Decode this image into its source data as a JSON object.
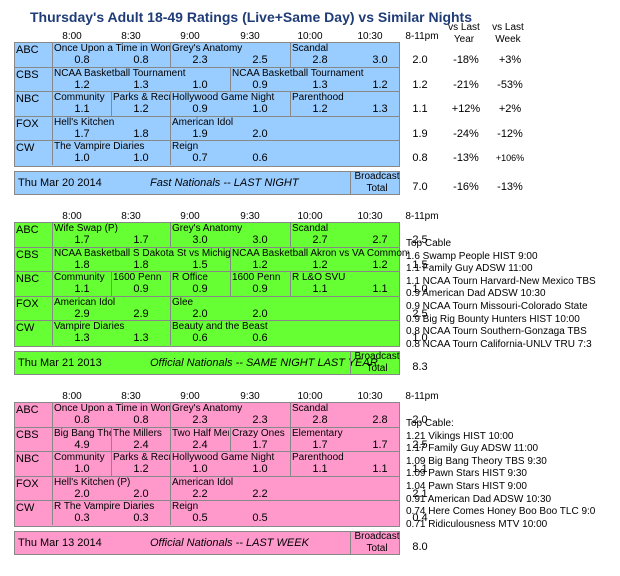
{
  "title": "Thursday's Adult 18-49 Ratings (Live+Same Day) vs Similar Nights",
  "side_headers": {
    "vs_last_year": "vs Last\nYear",
    "vs_last_week": "vs Last\nWeek"
  },
  "time_headers": [
    "8:00",
    "8:30",
    "9:00",
    "9:30",
    "10:00",
    "10:30",
    "8-11pm"
  ],
  "panels": [
    {
      "color": "#99ccff",
      "rows": [
        {
          "net": "ABC",
          "shows": [
            {
              "t": "Once Upon a Time in Wonde",
              "c": 0
            },
            {
              "t": "Grey's Anatomy",
              "c": 2
            },
            {
              "t": "Scandal",
              "c": 4
            }
          ],
          "vals": [
            "0.8",
            "0.8",
            "2.3",
            "2.5",
            "2.8",
            "3.0"
          ],
          "total": "2.0",
          "yoy": "-18%",
          "wow": "+3%"
        },
        {
          "net": "CBS",
          "shows": [
            {
              "t": "NCAA Basketball Tournament",
              "c": 0
            },
            {
              "t": "NCAA Basketball Tournament",
              "c": 3
            }
          ],
          "vals": [
            "1.2",
            "1.3",
            "1.0",
            "0.9",
            "1.3",
            "1.2"
          ],
          "total": "1.2",
          "yoy": "-21%",
          "wow": "-53%"
        },
        {
          "net": "NBC",
          "shows": [
            {
              "t": "Community",
              "c": 0
            },
            {
              "t": "Parks & Recre",
              "c": 1
            },
            {
              "t": "Hollywood Game Night",
              "c": 2
            },
            {
              "t": "Parenthood",
              "c": 4
            }
          ],
          "vals": [
            "1.1",
            "1.2",
            "0.9",
            "1.0",
            "1.2",
            "1.3"
          ],
          "total": "1.1",
          "yoy": "+12%",
          "wow": "+2%"
        },
        {
          "net": "FOX",
          "shows": [
            {
              "t": "Hell's Kitchen",
              "c": 0
            },
            {
              "t": "American Idol",
              "c": 2
            }
          ],
          "vals": [
            "1.7",
            "1.8",
            "1.9",
            "2.0",
            "",
            ""
          ],
          "total": "1.9",
          "yoy": "-24%",
          "wow": "-12%"
        },
        {
          "net": "CW",
          "shows": [
            {
              "t": "The Vampire Diaries",
              "c": 0
            },
            {
              "t": "Reign",
              "c": 2
            }
          ],
          "vals": [
            "1.0",
            "1.0",
            "0.7",
            "0.6",
            "",
            ""
          ],
          "total": "0.8",
          "yoy": "-13%",
          "wow": "+106%"
        }
      ],
      "footer": {
        "date": "Thu Mar 20 2014",
        "label": "Fast Nationals -- LAST NIGHT",
        "bcast": "Broadcast\nTotal",
        "total": "7.0",
        "yoy": "-16%",
        "wow": "-13%"
      }
    },
    {
      "color": "#66ff33",
      "rows": [
        {
          "net": "ABC",
          "shows": [
            {
              "t": "Wife Swap (P)",
              "c": 0
            },
            {
              "t": "Grey's Anatomy",
              "c": 2
            },
            {
              "t": "Scandal",
              "c": 4
            }
          ],
          "vals": [
            "1.7",
            "1.7",
            "3.0",
            "3.0",
            "2.7",
            "2.7"
          ],
          "total": "2.5",
          "yoy": "",
          "wow": ""
        },
        {
          "net": "CBS",
          "shows": [
            {
              "t": "NCAA Basketball S Dakota St vs Michigan",
              "c": 0
            },
            {
              "t": "NCAA Basketball Akron vs VA Commonw",
              "c": 3
            }
          ],
          "vals": [
            "1.8",
            "1.8",
            "1.5",
            "1.2",
            "1.2",
            "1.2"
          ],
          "total": "1.5",
          "yoy": "",
          "wow": ""
        },
        {
          "net": "NBC",
          "shows": [
            {
              "t": "Community",
              "c": 0
            },
            {
              "t": "1600 Penn",
              "c": 1
            },
            {
              "t": "R Office",
              "c": 2
            },
            {
              "t": "1600 Penn",
              "c": 3
            },
            {
              "t": "R L&O SVU",
              "c": 4
            }
          ],
          "vals": [
            "1.1",
            "0.9",
            "0.9",
            "0.9",
            "1.1",
            "1.1"
          ],
          "total": "1.0",
          "yoy": "",
          "wow": ""
        },
        {
          "net": "FOX",
          "shows": [
            {
              "t": "American Idol",
              "c": 0
            },
            {
              "t": "Glee",
              "c": 2
            }
          ],
          "vals": [
            "2.9",
            "2.9",
            "2.0",
            "2.0",
            "",
            ""
          ],
          "total": "2.5",
          "yoy": "",
          "wow": ""
        },
        {
          "net": "CW",
          "shows": [
            {
              "t": "Vampire Diaries",
              "c": 0
            },
            {
              "t": "Beauty and the Beast",
              "c": 2
            }
          ],
          "vals": [
            "1.3",
            "1.3",
            "0.6",
            "0.6",
            "",
            ""
          ],
          "total": "1.0",
          "yoy": "",
          "wow": ""
        }
      ],
      "footer": {
        "date": "Thu Mar 21 2013",
        "label": "Official Nationals -- SAME NIGHT LAST YEAR",
        "bcast": "Broadcast\nTotal",
        "total": "8.3",
        "yoy": "",
        "wow": ""
      }
    },
    {
      "color": "#ff99cc",
      "rows": [
        {
          "net": "ABC",
          "shows": [
            {
              "t": "Once Upon a Time in Wonde",
              "c": 0
            },
            {
              "t": "Grey's Anatomy",
              "c": 2
            },
            {
              "t": "Scandal",
              "c": 4
            }
          ],
          "vals": [
            "0.8",
            "0.8",
            "2.3",
            "2.3",
            "2.8",
            "2.8"
          ],
          "total": "2.0",
          "yoy": "",
          "wow": ""
        },
        {
          "net": "CBS",
          "shows": [
            {
              "t": "Big Bang The",
              "c": 0
            },
            {
              "t": "The Millers",
              "c": 1
            },
            {
              "t": "Two Half Men",
              "c": 2
            },
            {
              "t": "Crazy Ones",
              "c": 3
            },
            {
              "t": "Elementary",
              "c": 4
            }
          ],
          "vals": [
            "4.9",
            "2.4",
            "2.4",
            "1.7",
            "1.7",
            "1.7"
          ],
          "total": "2.5",
          "yoy": "",
          "wow": ""
        },
        {
          "net": "NBC",
          "shows": [
            {
              "t": "Community",
              "c": 0
            },
            {
              "t": "Parks & Recre",
              "c": 1
            },
            {
              "t": "Hollywood Game Night",
              "c": 2
            },
            {
              "t": "Parenthood",
              "c": 4
            }
          ],
          "vals": [
            "1.0",
            "1.2",
            "1.0",
            "1.0",
            "1.1",
            "1.1"
          ],
          "total": "1.1",
          "yoy": "",
          "wow": ""
        },
        {
          "net": "FOX",
          "shows": [
            {
              "t": "Hell's Kitchen (P)",
              "c": 0
            },
            {
              "t": "American Idol",
              "c": 2
            }
          ],
          "vals": [
            "2.0",
            "2.0",
            "2.2",
            "2.2",
            "",
            ""
          ],
          "total": "2.1",
          "yoy": "",
          "wow": ""
        },
        {
          "net": "CW",
          "shows": [
            {
              "t": "R The Vampire Diaries",
              "c": 0
            },
            {
              "t": "Reign",
              "c": 2
            }
          ],
          "vals": [
            "0.3",
            "0.3",
            "0.5",
            "0.5",
            "",
            ""
          ],
          "total": "0.4",
          "yoy": "",
          "wow": ""
        }
      ],
      "footer": {
        "date": "Thu Mar 13 2014",
        "label": "Official Nationals -- LAST WEEK",
        "bcast": "Broadcast\nTotal",
        "total": "8.0",
        "yoy": "",
        "wow": ""
      }
    }
  ],
  "cable_lists": [
    {
      "heading": "Top Cable",
      "items": [
        "1.6 Swamp People HIST 9:00",
        "1.1 Family Guy ADSW 11:00",
        "1.1 NCAA Tourn Harvard-New Mexico TBS",
        "0.9 American Dad ADSW 10:30",
        "0.9 NCAA Tourn Missouri-Colorado State",
        "0.9 Big Rig Bounty Hunters HIST 10:00",
        "0.8 NCAA Tourn Southern-Gonzaga TBS",
        "0.8 NCAA Tourn California-UNLV TRU 7:3"
      ]
    },
    {
      "heading": "Top Cable:",
      "items": [
        "1.21 Vikings HIST 10:00",
        "1.17 Family Guy ADSW 11:00",
        "1.09 Big Bang Theory TBS 9:30",
        "1.09 Pawn Stars HIST 9:30",
        "1.04 Pawn Stars HIST 9:00",
        "0.91 American Dad ADSW 10:30",
        "0.74 Here Comes Honey Boo Boo TLC 9:0",
        "0.71 Ridiculousness MTV 10:00"
      ]
    }
  ]
}
